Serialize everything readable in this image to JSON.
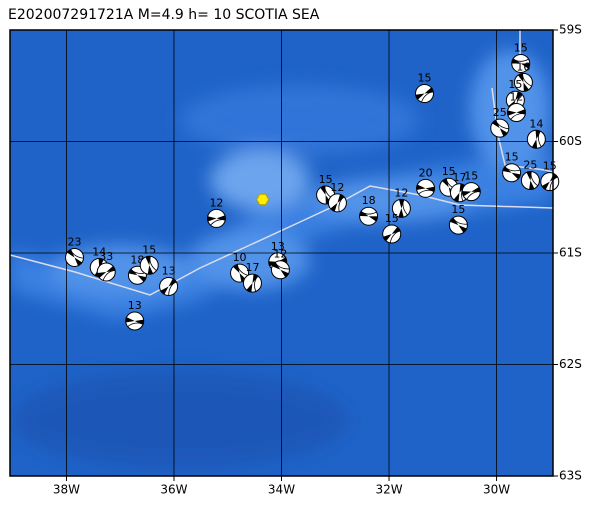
{
  "chart_data": {
    "type": "map",
    "title": "E202007291721A M=4.9 h= 10 SCOTIA SEA",
    "xlim": [
      -39.05,
      -28.95
    ],
    "ylim": [
      -63,
      -59
    ],
    "xticks": [
      {
        "value": -38,
        "label": "38W"
      },
      {
        "value": -36,
        "label": "36W"
      },
      {
        "value": -34,
        "label": "34W"
      },
      {
        "value": -32,
        "label": "32W"
      },
      {
        "value": -30,
        "label": "30W"
      }
    ],
    "yticks": [
      {
        "value": -59,
        "label": "59S"
      },
      {
        "value": -60,
        "label": "60S"
      },
      {
        "value": -61,
        "label": "61S"
      },
      {
        "value": -62,
        "label": "62S"
      },
      {
        "value": -63,
        "label": "63S"
      }
    ],
    "grid": true,
    "epicenter": {
      "lon": -34.35,
      "lat": -60.52,
      "color": "#ffee00"
    },
    "events": {
      "lon": [
        -29.55,
        -29.5,
        -29.65,
        -29.63,
        -29.94,
        -29.26,
        -31.34,
        -29.72,
        -29.37,
        -29.01,
        -31.32,
        -30.89,
        -30.69,
        -30.47,
        -30.71,
        -31.77,
        -31.95,
        -32.38,
        -33.18,
        -32.96,
        -35.21,
        -37.85,
        -37.39,
        -37.26,
        -36.68,
        -36.46,
        -36.1,
        -36.73,
        -34.78,
        -34.54,
        -34.07,
        -34.02
      ],
      "lat": [
        -59.3,
        -59.47,
        -59.63,
        -59.74,
        -59.88,
        -59.98,
        -59.57,
        -60.28,
        -60.35,
        -60.36,
        -60.42,
        -60.41,
        -60.46,
        -60.45,
        -60.75,
        -60.6,
        -60.83,
        -60.67,
        -60.48,
        -60.55,
        -60.69,
        -61.04,
        -61.13,
        -61.17,
        -61.2,
        -61.11,
        -61.3,
        -61.61,
        -61.18,
        -61.27,
        -61.08,
        -61.15
      ],
      "depth": [
        15,
        16,
        15,
        12,
        25,
        14,
        15,
        15,
        25,
        15,
        20,
        15,
        17,
        15,
        15,
        12,
        15,
        18,
        15,
        12,
        12,
        23,
        14,
        33,
        18,
        15,
        13,
        13,
        10,
        17,
        13,
        12
      ]
    }
  }
}
